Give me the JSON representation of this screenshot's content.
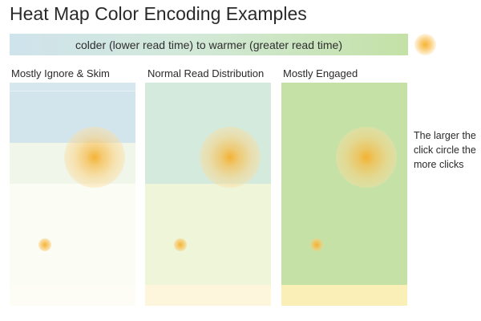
{
  "title": "Heat Map Color Encoding Examples",
  "legend": {
    "text": "colder (lower read time) to warmer (greater read time)",
    "colors": [
      "#cfe3ec",
      "#d2e9d9",
      "#c4e1a6"
    ],
    "click_color": "#f7b531"
  },
  "columns": [
    {
      "label": "Mostly Ignore & Skim",
      "bands": [
        "#d3e5ec",
        "#f0f6ea",
        "#fbfcf3",
        "#fbfcf3"
      ],
      "large_click_icon": "click-circle-large",
      "small_click_icon": "click-circle-small"
    },
    {
      "label": "Normal Read Distribution",
      "bands": [
        "#d3eadc",
        "#d3eadc",
        "#eef5d8",
        "#fdf6dc"
      ],
      "large_click_icon": "click-circle-large",
      "small_click_icon": "click-circle-small"
    },
    {
      "label": "Mostly Engaged",
      "bands": [
        "#c6e1a5",
        "#c6e1a5",
        "#c6e1a5",
        "#fbefb8"
      ],
      "large_click_icon": "click-circle-large",
      "small_click_icon": "click-circle-small"
    }
  ],
  "note": "The larger the click circle the more clicks"
}
